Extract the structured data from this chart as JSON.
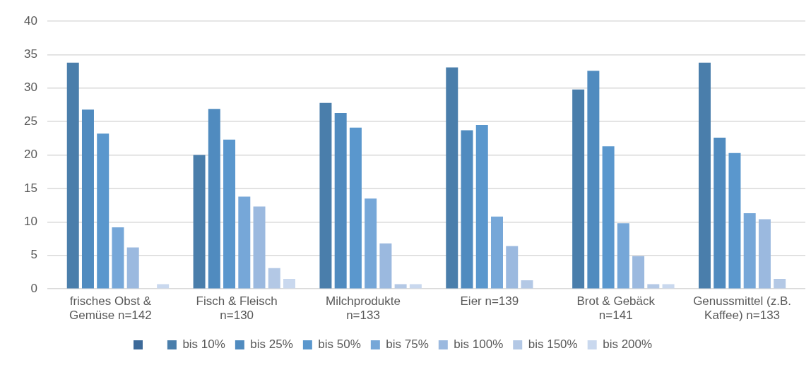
{
  "chart_data": {
    "type": "bar",
    "categories": [
      "frisches Obst & Gemüse n=142",
      "Fisch & Fleisch n=130",
      "Milchprodukte n=133",
      "Eier n=139",
      "Brot & Gebäck n=141",
      "Genussmittel (z.B. Kaffee) n=133"
    ],
    "series": [
      {
        "color": "#3d6a99",
        "values": [
          0,
          0,
          0,
          0,
          0,
          0
        ]
      },
      {
        "name": "bis 10%",
        "color": "#4a7eab",
        "values": [
          33.8,
          20.0,
          27.8,
          33.1,
          29.8,
          33.8
        ]
      },
      {
        "name": "bis 25%",
        "color": "#508bbf",
        "values": [
          26.8,
          26.9,
          26.3,
          23.7,
          32.6,
          22.6
        ]
      },
      {
        "name": "bis 50%",
        "color": "#5a97cd",
        "values": [
          23.2,
          22.3,
          24.1,
          24.5,
          21.3,
          20.3
        ]
      },
      {
        "name": "bis 75%",
        "color": "#76a7d8",
        "values": [
          9.2,
          13.8,
          13.5,
          10.8,
          9.8,
          11.3
        ]
      },
      {
        "name": "bis 100%",
        "color": "#9bb9df",
        "values": [
          6.2,
          12.3,
          6.8,
          6.4,
          4.9,
          10.4
        ]
      },
      {
        "name": "bis 150%",
        "color": "#b3c8e5",
        "values": [
          0,
          3.1,
          0.7,
          1.3,
          0.7,
          1.5
        ]
      },
      {
        "name": "bis 200%",
        "color": "#c9d8ee",
        "values": [
          0.7,
          1.5,
          0.7,
          0,
          0.7,
          0
        ]
      }
    ],
    "ylim": [
      0,
      40
    ],
    "yticks": [
      0,
      5,
      10,
      15,
      20,
      25,
      30,
      35,
      40
    ],
    "grid": "y",
    "legend": "bottom"
  }
}
